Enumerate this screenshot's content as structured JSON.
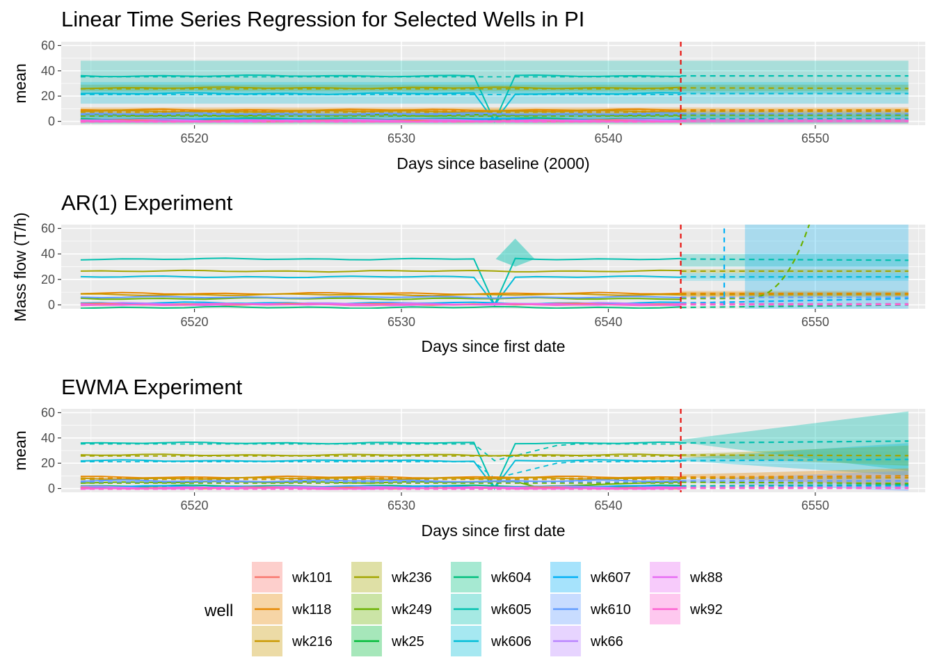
{
  "shared_ylabel": "Mass flow (T/h)",
  "legend": {
    "title": "well",
    "items": [
      {
        "name": "wk101",
        "color": "#F8766D"
      },
      {
        "name": "wk118",
        "color": "#E58700"
      },
      {
        "name": "wk216",
        "color": "#C99800"
      },
      {
        "name": "wk236",
        "color": "#A3A500"
      },
      {
        "name": "wk249",
        "color": "#6BB100"
      },
      {
        "name": "wk25",
        "color": "#00BA38"
      },
      {
        "name": "wk604",
        "color": "#00BF7D"
      },
      {
        "name": "wk605",
        "color": "#00C0AF"
      },
      {
        "name": "wk606",
        "color": "#00BCD8"
      },
      {
        "name": "wk607",
        "color": "#00B0F6"
      },
      {
        "name": "wk610",
        "color": "#619CFF"
      },
      {
        "name": "wk66",
        "color": "#B983FF"
      },
      {
        "name": "wk88",
        "color": "#E76BF3"
      },
      {
        "name": "wk92",
        "color": "#FD61D1"
      }
    ]
  },
  "chart_data": [
    {
      "type": "line",
      "title": "Linear Time Series Regression for Selected Wells in PI",
      "xlabel": "Days since baseline (2000)",
      "ylabel": "mean",
      "xlim": [
        6514.5,
        6554.5
      ],
      "ylim": [
        -3,
        63
      ],
      "xticks": [
        6520,
        6530,
        6540,
        6550
      ],
      "yticks": [
        0,
        20,
        40,
        60
      ],
      "grid": true,
      "forecast_start": 6543.5,
      "observed_x_range": [
        6514.5,
        6543.5
      ],
      "forecast_x_range": [
        6543.5,
        6554.5
      ],
      "series": [
        {
          "name": "wk605",
          "observed_level": 36,
          "forecast_level": 36,
          "band": [
            22,
            48
          ],
          "dip_at": 6534.5
        },
        {
          "name": "wk236",
          "observed_level": 26.5,
          "forecast_level": 26,
          "band": [
            24,
            29
          ]
        },
        {
          "name": "wk606",
          "observed_level": 22,
          "forecast_level": 22,
          "band": [
            14,
            31
          ],
          "dip_at": 6534.5
        },
        {
          "name": "wk118",
          "observed_level": 9,
          "forecast_level": 9,
          "band": [
            7,
            11
          ]
        },
        {
          "name": "wk216",
          "observed_level": 8,
          "forecast_level": 8,
          "band": [
            6,
            10
          ]
        },
        {
          "name": "wk249",
          "observed_level": 5,
          "forecast_level": 5,
          "band": [
            3,
            7
          ]
        },
        {
          "name": "wk604",
          "observed_level": 2,
          "forecast_level": 2,
          "band": [
            -2,
            6
          ]
        },
        {
          "name": "wk607",
          "observed_level": 1.5,
          "forecast_level": 1.5,
          "band": [
            -1,
            5
          ]
        },
        {
          "name": "wk610",
          "observed_level": 6,
          "forecast_level": 6,
          "band": [
            4,
            8
          ]
        },
        {
          "name": "wk66",
          "observed_level": 1,
          "forecast_level": 1,
          "band": [
            0,
            3
          ]
        },
        {
          "name": "wk101",
          "observed_level": 0.5,
          "forecast_level": 0.5,
          "band": [
            -1,
            2
          ]
        },
        {
          "name": "wk88",
          "observed_level": 0.3,
          "forecast_level": 0.3,
          "band": [
            -1,
            2
          ]
        },
        {
          "name": "wk92",
          "observed_level": 0.2,
          "forecast_level": 0.2,
          "band": [
            -1,
            2
          ]
        }
      ]
    },
    {
      "type": "line",
      "title": "AR(1) Experiment",
      "xlabel": "Days since first date",
      "ylabel": "",
      "xlim": [
        6514.5,
        6554.5
      ],
      "ylim": [
        -3,
        63
      ],
      "xticks": [
        6520,
        6530,
        6540,
        6550
      ],
      "yticks": [
        0,
        20,
        40,
        60
      ],
      "grid": true,
      "forecast_start": 6543.5,
      "secondary_vline": 6545.6,
      "series": [
        {
          "name": "wk605",
          "observed_level": 36,
          "forecast_level": 35,
          "band": [
            30,
            40
          ],
          "dip_at": 6534.5,
          "bump_at": 6535.5
        },
        {
          "name": "wk236",
          "observed_level": 26.5,
          "forecast_level": 26.5,
          "band": [
            25,
            28
          ]
        },
        {
          "name": "wk606",
          "observed_level": 22,
          "forecast_level": 22,
          "band": [
            19,
            25
          ],
          "dip_at": 6534.5
        },
        {
          "name": "wk118",
          "observed_level": 9,
          "forecast_level": 9,
          "band": [
            7,
            11
          ]
        },
        {
          "name": "wk216",
          "observed_level": 8,
          "forecast_level": 8,
          "band": [
            6,
            10
          ]
        },
        {
          "name": "wk249",
          "observed_level": 5,
          "forecast_level": 5,
          "explodes_after": 6546.5
        },
        {
          "name": "wk604",
          "observed_level": -2,
          "forecast_level": 0
        },
        {
          "name": "wk607",
          "observed_level": 1.5,
          "forecast_level": 5,
          "band": [
            -3,
            63
          ],
          "band_from": 6546.6
        },
        {
          "name": "wk610",
          "observed_level": 6,
          "forecast_level": 6
        },
        {
          "name": "wk66",
          "observed_level": 1,
          "forecast_level": 1
        },
        {
          "name": "wk101",
          "observed_level": 0.5,
          "forecast_level": 0.5
        },
        {
          "name": "wk88",
          "observed_level": 0.3,
          "forecast_level": 0.3
        },
        {
          "name": "wk92",
          "observed_level": 0.2,
          "forecast_level": 0.2
        }
      ]
    },
    {
      "type": "line",
      "title": "EWMA Experiment",
      "xlabel": "Days since first date",
      "ylabel": "mean",
      "xlim": [
        6514.5,
        6554.5
      ],
      "ylim": [
        -3,
        63
      ],
      "xticks": [
        6520,
        6530,
        6540,
        6550
      ],
      "yticks": [
        0,
        20,
        40,
        60
      ],
      "grid": true,
      "forecast_start": 6543.5,
      "series": [
        {
          "name": "wk605",
          "observed_level": 36,
          "forecast_level": 37.5,
          "band_end": [
            14,
            61
          ],
          "dip_at": 6534.5
        },
        {
          "name": "wk236",
          "observed_level": 26.5,
          "forecast_level": 26,
          "band_end": [
            18,
            34
          ]
        },
        {
          "name": "wk606",
          "observed_level": 22,
          "forecast_level": 23,
          "band_end": [
            10,
            36
          ],
          "dip_at": 6534.5
        },
        {
          "name": "wk118",
          "observed_level": 9,
          "forecast_level": 10,
          "band_end": [
            2,
            16
          ]
        },
        {
          "name": "wk216",
          "observed_level": 8,
          "forecast_level": 8.5
        },
        {
          "name": "wk249",
          "observed_level": 5,
          "forecast_level": 4
        },
        {
          "name": "wk604",
          "observed_level": 2,
          "forecast_level": 3
        },
        {
          "name": "wk607",
          "observed_level": 1.5,
          "forecast_level": 2
        },
        {
          "name": "wk610",
          "observed_level": 6,
          "forecast_level": 6,
          "band_end": [
            -2,
            14
          ]
        },
        {
          "name": "wk66",
          "observed_level": 1,
          "forecast_level": 1
        },
        {
          "name": "wk101",
          "observed_level": 0.5,
          "forecast_level": 0.5
        },
        {
          "name": "wk88",
          "observed_level": 0.3,
          "forecast_level": 0.3
        },
        {
          "name": "wk92",
          "observed_level": 0.2,
          "forecast_level": 0.2
        }
      ]
    }
  ]
}
